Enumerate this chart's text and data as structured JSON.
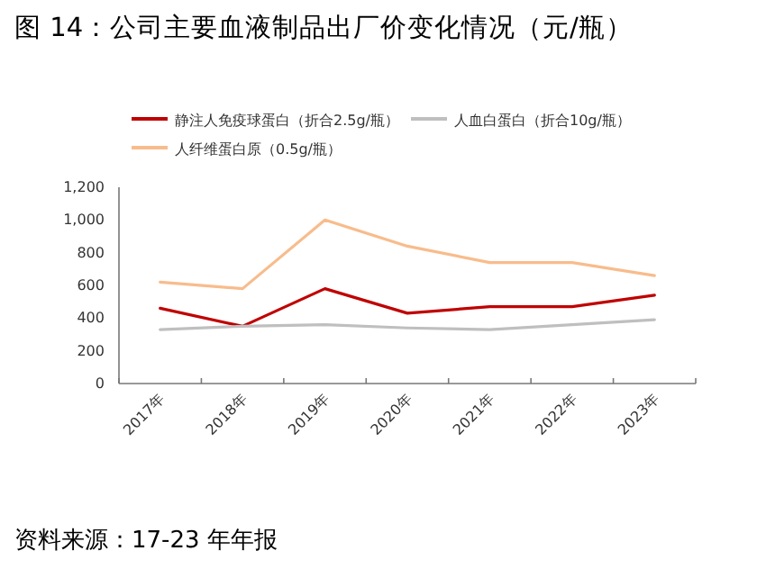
{
  "chart_data": {
    "type": "line",
    "title": "图 14：公司主要血液制品出厂价变化情况（元/瓶）",
    "categories": [
      "2017年",
      "2018年",
      "2019年",
      "2020年",
      "2021年",
      "2022年",
      "2023年"
    ],
    "series": [
      {
        "name": "静注人免疫球蛋白（折合2.5g/瓶）",
        "color": "#c00000",
        "values": [
          460,
          350,
          580,
          430,
          470,
          470,
          540
        ]
      },
      {
        "name": "人血白蛋白（折合10g/瓶）",
        "color": "#bfbfbf",
        "values": [
          330,
          350,
          360,
          340,
          330,
          360,
          390
        ]
      },
      {
        "name": "人纤维蛋白原（0.5g/瓶）",
        "color": "#f8bc8c",
        "values": [
          620,
          580,
          1000,
          840,
          740,
          740,
          660
        ]
      }
    ],
    "ylim": [
      0,
      1200
    ],
    "yticks": [
      0,
      {
        "value": 200,
        "label": "200"
      },
      400,
      600,
      800,
      {
        "value": 1000,
        "label": "1,000"
      },
      {
        "value": 1200,
        "label": "1,200"
      }
    ],
    "legend": "top",
    "grid": false,
    "marker": "none",
    "annotations": [
      "资料来源：17-23 年年报"
    ]
  }
}
